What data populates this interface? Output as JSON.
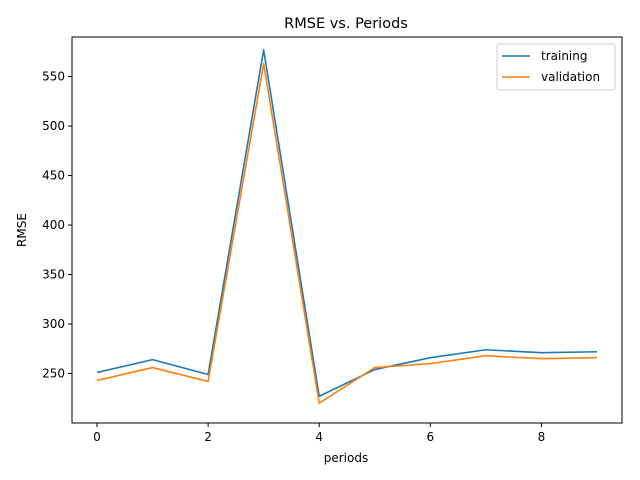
{
  "chart_data": {
    "type": "line",
    "title": "RMSE vs. Periods",
    "xlabel": "periods",
    "ylabel": "RMSE",
    "xlim": [
      -0.45,
      9.45
    ],
    "ylim": [
      200,
      590
    ],
    "xticks": [
      0,
      2,
      4,
      6,
      8
    ],
    "yticks": [
      250,
      300,
      350,
      400,
      450,
      500,
      550
    ],
    "grid": false,
    "legend_position": "top-right",
    "x": [
      0,
      1,
      2,
      3,
      4,
      5,
      6,
      7,
      8,
      9
    ],
    "series": [
      {
        "name": "training",
        "color": "#1f77b4",
        "values": [
          251,
          264,
          249,
          577,
          227,
          254,
          266,
          274,
          271,
          272
        ]
      },
      {
        "name": "validation",
        "color": "#ff7f0e",
        "values": [
          243,
          256,
          242,
          563,
          220,
          256,
          260,
          268,
          265,
          266
        ]
      }
    ]
  }
}
